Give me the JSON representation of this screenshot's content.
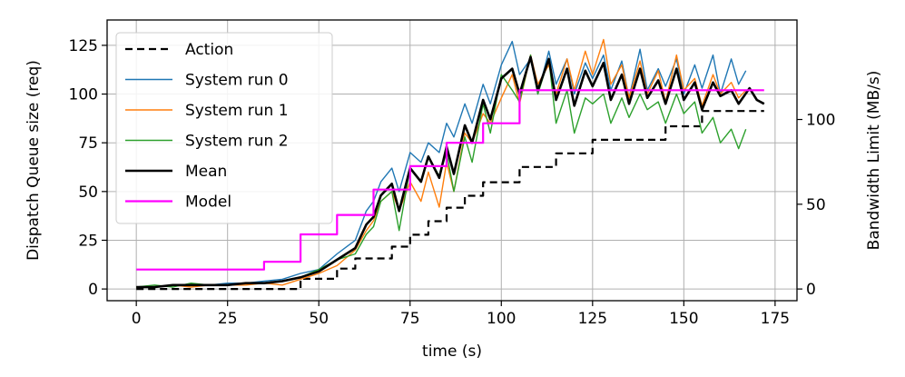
{
  "chart_data": {
    "type": "line",
    "title": "",
    "xlabel": "time (s)",
    "ylabel": "Dispatch Queue size (req)",
    "ylabel_right": "Bandwidth Limit (MB/s)",
    "xlim": [
      -8,
      181
    ],
    "ylim": [
      -6,
      138
    ],
    "ylim_right": [
      -6.9,
      158.7
    ],
    "xticks": [
      0,
      25,
      50,
      75,
      100,
      125,
      150,
      175
    ],
    "yticks": [
      0,
      25,
      50,
      75,
      100,
      125
    ],
    "yticks_right": [
      0,
      50,
      100
    ],
    "grid": true,
    "legend_position": "top-left",
    "series": [
      {
        "name": "Action",
        "axis": "right",
        "style": "dashed",
        "color": "#000000",
        "x": [
          0,
          45,
          45,
          55,
          55,
          60,
          60,
          70,
          70,
          75,
          75,
          80,
          80,
          85,
          85,
          90,
          90,
          95,
          95,
          105,
          105,
          115,
          115,
          125,
          125,
          145,
          145,
          155,
          155,
          172
        ],
        "y": [
          0,
          0,
          6,
          6,
          12,
          12,
          18,
          18,
          25,
          25,
          32,
          32,
          40,
          40,
          48,
          48,
          55,
          55,
          63,
          63,
          72,
          72,
          80,
          80,
          88,
          88,
          96,
          96,
          105,
          105
        ]
      },
      {
        "name": "System run 0",
        "axis": "left",
        "color": "#1f77b4",
        "x": [
          0,
          5,
          10,
          15,
          20,
          25,
          30,
          35,
          40,
          45,
          50,
          55,
          60,
          63,
          65,
          67,
          70,
          72,
          75,
          78,
          80,
          83,
          85,
          87,
          90,
          92,
          95,
          97,
          100,
          103,
          105,
          108,
          110,
          113,
          115,
          118,
          120,
          123,
          125,
          128,
          130,
          133,
          135,
          138,
          140,
          143,
          145,
          148,
          150,
          153,
          155,
          158,
          160,
          163,
          165,
          167
        ],
        "y": [
          1,
          1,
          2,
          2,
          2,
          3,
          3,
          4,
          5,
          8,
          10,
          18,
          25,
          40,
          45,
          55,
          62,
          50,
          70,
          65,
          75,
          70,
          85,
          78,
          95,
          85,
          105,
          95,
          115,
          127,
          110,
          118,
          100,
          122,
          105,
          118,
          100,
          116,
          108,
          120,
          102,
          117,
          98,
          123,
          102,
          113,
          104,
          118,
          100,
          115,
          103,
          120,
          100,
          118,
          105,
          112
        ]
      },
      {
        "name": "System run 1",
        "axis": "left",
        "color": "#ff7f0e",
        "x": [
          0,
          5,
          10,
          15,
          20,
          25,
          30,
          35,
          40,
          45,
          50,
          55,
          60,
          63,
          65,
          67,
          70,
          72,
          75,
          78,
          80,
          83,
          85,
          87,
          90,
          92,
          95,
          97,
          100,
          103,
          105,
          108,
          110,
          113,
          115,
          118,
          120,
          123,
          125,
          128,
          130,
          133,
          135,
          138,
          140,
          143,
          145,
          148,
          150,
          153,
          155,
          158,
          160,
          163,
          165,
          167
        ],
        "y": [
          1,
          1,
          2,
          1,
          2,
          2,
          2,
          3,
          2,
          5,
          8,
          12,
          20,
          30,
          35,
          45,
          50,
          40,
          55,
          45,
          60,
          42,
          65,
          50,
          80,
          75,
          90,
          85,
          98,
          110,
          95,
          120,
          105,
          115,
          100,
          118,
          102,
          122,
          110,
          128,
          105,
          115,
          98,
          117,
          100,
          112,
          96,
          120,
          102,
          108,
          94,
          110,
          100,
          106,
          98,
          102
        ]
      },
      {
        "name": "System run 2",
        "axis": "left",
        "color": "#2ca02c",
        "x": [
          0,
          5,
          10,
          15,
          20,
          25,
          30,
          35,
          40,
          45,
          50,
          55,
          60,
          63,
          65,
          67,
          70,
          72,
          75,
          78,
          80,
          83,
          85,
          87,
          90,
          92,
          95,
          97,
          100,
          103,
          105,
          108,
          110,
          113,
          115,
          118,
          120,
          123,
          125,
          128,
          130,
          133,
          135,
          138,
          140,
          143,
          145,
          148,
          150,
          153,
          155,
          158,
          160,
          163,
          165,
          167
        ],
        "y": [
          1,
          2,
          1,
          3,
          2,
          2,
          3,
          3,
          4,
          6,
          10,
          15,
          18,
          28,
          32,
          45,
          50,
          30,
          62,
          55,
          68,
          58,
          70,
          50,
          78,
          65,
          95,
          80,
          110,
          102,
          96,
          120,
          100,
          118,
          85,
          102,
          80,
          98,
          95,
          100,
          85,
          98,
          88,
          100,
          92,
          96,
          85,
          100,
          90,
          96,
          80,
          88,
          75,
          82,
          72,
          82
        ]
      },
      {
        "name": "Mean",
        "axis": "left",
        "color": "#000000",
        "x": [
          0,
          5,
          10,
          15,
          20,
          25,
          30,
          35,
          40,
          45,
          50,
          55,
          60,
          63,
          65,
          67,
          70,
          72,
          75,
          78,
          80,
          83,
          85,
          87,
          90,
          92,
          95,
          97,
          100,
          103,
          105,
          108,
          110,
          113,
          115,
          118,
          120,
          123,
          125,
          128,
          130,
          133,
          135,
          138,
          140,
          143,
          145,
          148,
          150,
          153,
          155,
          158,
          160,
          163,
          165,
          168,
          170,
          172
        ],
        "y": [
          1,
          1,
          2,
          2,
          2,
          2,
          3,
          3,
          4,
          6,
          9,
          15,
          21,
          33,
          37,
          48,
          54,
          40,
          62,
          55,
          68,
          57,
          73,
          59,
          84,
          75,
          97,
          87,
          108,
          113,
          100,
          119,
          102,
          118,
          97,
          113,
          94,
          112,
          104,
          116,
          97,
          110,
          95,
          113,
          98,
          107,
          95,
          113,
          97,
          106,
          92,
          106,
          99,
          102,
          95,
          103,
          97,
          95
        ]
      },
      {
        "name": "Model",
        "axis": "left",
        "color": "#ff00ff",
        "x": [
          0,
          35,
          35,
          45,
          45,
          55,
          55,
          65,
          65,
          75,
          75,
          85,
          85,
          95,
          95,
          105,
          105,
          172
        ],
        "y": [
          10,
          10,
          14,
          14,
          28,
          28,
          38,
          38,
          51,
          51,
          63,
          63,
          75,
          75,
          85,
          85,
          102,
          102
        ]
      }
    ]
  }
}
